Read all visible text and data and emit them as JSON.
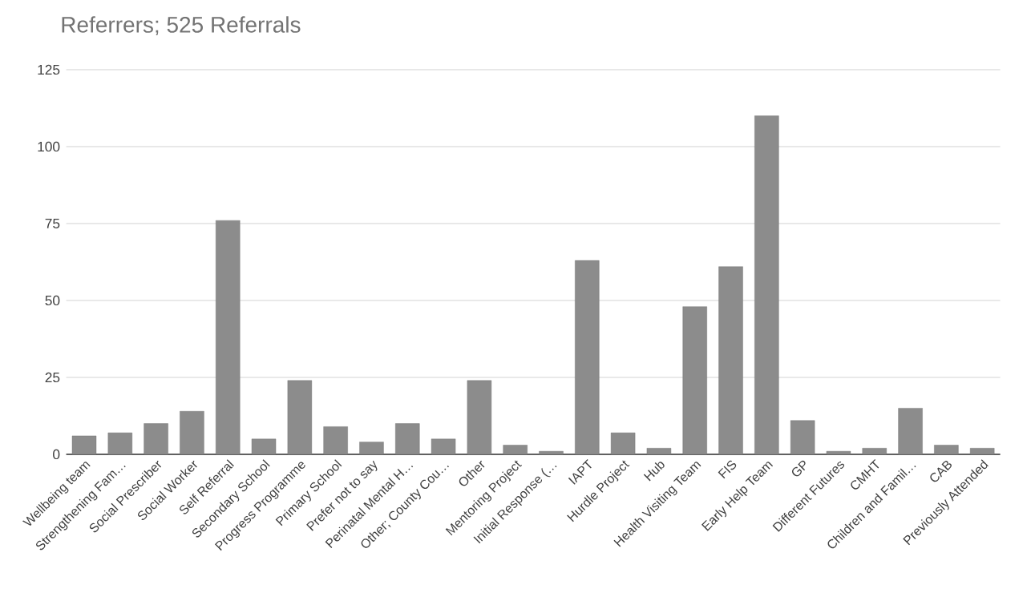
{
  "chart_data": {
    "type": "bar",
    "title": "Referrers; 525 Referrals",
    "categories": [
      "Wellbeing team",
      "Strengthening Fam…",
      "Social Prescriber",
      "Social Worker",
      "Self Referral",
      "Secondary School",
      "Progress Programme",
      "Primary School",
      "Prefer not to say",
      "Perinatal Mental H…",
      "Other; County Cou…",
      "Other",
      "Mentoring Project",
      "Initial Response (…",
      "IAPT",
      "Hurdle Project",
      "Hub",
      "Health Visiting Team",
      "FIS",
      "Early Help Team",
      "GP",
      "Different Futures",
      "CMHT",
      "Children and Famil…",
      "CAB",
      "Previously Attended"
    ],
    "values": [
      6,
      7,
      10,
      14,
      76,
      5,
      24,
      9,
      4,
      10,
      5,
      24,
      3,
      1,
      63,
      7,
      2,
      48,
      61,
      110,
      11,
      1,
      2,
      15,
      3,
      2
    ],
    "color": "#8c8c8c",
    "ylim": [
      0,
      125
    ],
    "yticks": [
      0,
      25,
      50,
      75,
      100,
      125
    ],
    "grid": "y"
  }
}
